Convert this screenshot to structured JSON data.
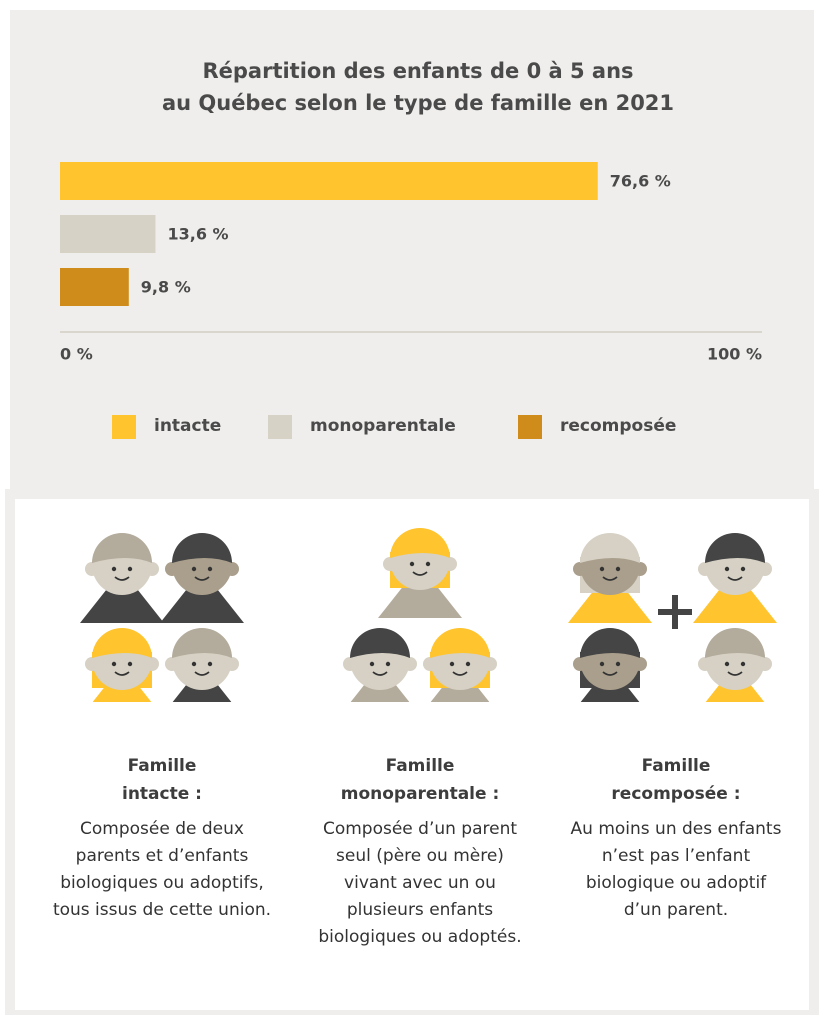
{
  "chart_data": {
    "type": "hbar",
    "title": [
      "Répartition des enfants de 0 à 5 ans",
      "au Québec selon le type de famille en 2021"
    ],
    "series": [
      {
        "name": "intacte",
        "color": "#ffc42e",
        "values": [
          76.6
        ],
        "value_labels": [
          "76,6 %"
        ]
      },
      {
        "name": "monoparentale",
        "color": "#d6d2c6",
        "values": [
          13.6
        ],
        "value_labels": [
          "13,6 %"
        ]
      },
      {
        "name": "recomposée",
        "color": "#d08c1a",
        "values": [
          9.8
        ],
        "value_labels": [
          "9,8 %"
        ]
      }
    ],
    "xlim": [
      0,
      100
    ],
    "xticks": [
      {
        "value": 0,
        "label": "0 %"
      },
      {
        "value": 100,
        "label": "100 %"
      }
    ]
  },
  "cards": [
    {
      "title": [
        "Famille",
        "intacte :"
      ],
      "text": "Composée de deux parents et d’enfants biologiques ou adoptifs, tous issus de cette union."
    },
    {
      "title": [
        "Famille",
        "monoparentale :"
      ],
      "text": "Composée d’un parent seul (père ou mère) vivant avec un ou plusieurs enfants biologiques ou adoptés."
    },
    {
      "title": [
        "Famille",
        "recomposée :"
      ],
      "text": "Au moins un des enfants n’est pas l’enfant biologique ou adoptif d’un parent."
    }
  ]
}
